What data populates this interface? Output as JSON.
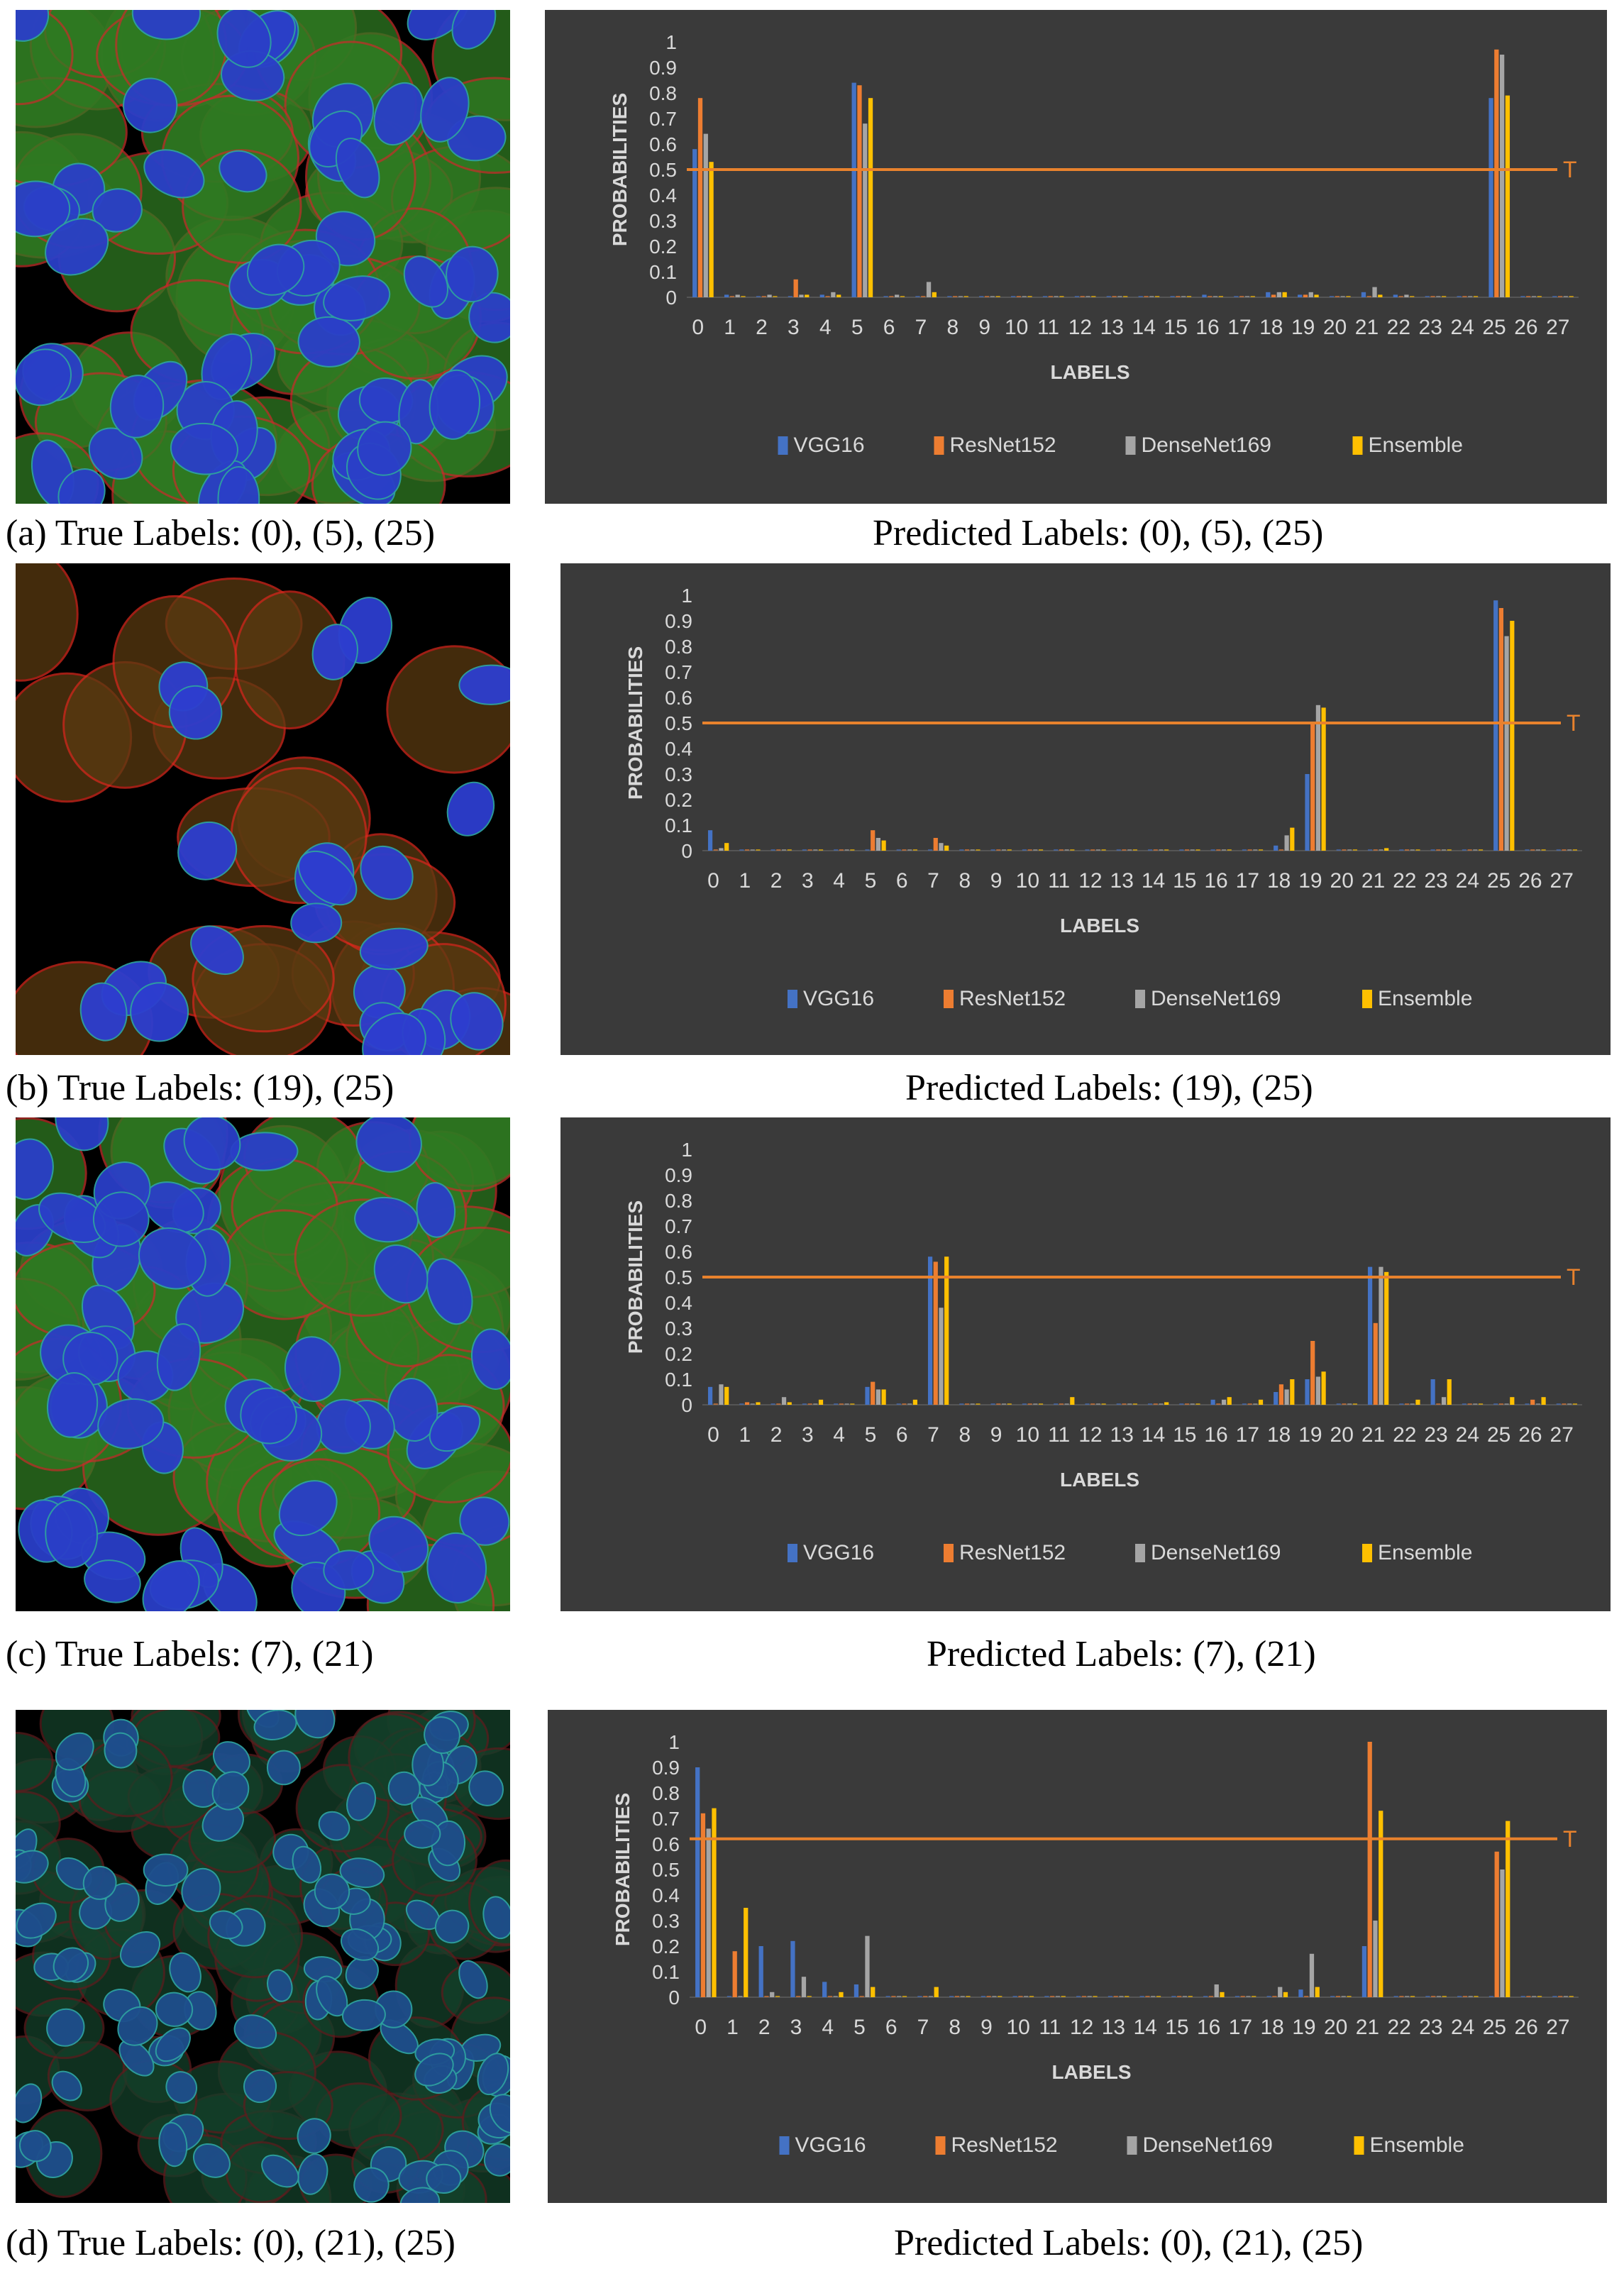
{
  "colors": {
    "vgg16": "#4472c4",
    "resnet152": "#ed7d31",
    "densenet169": "#a5a5a5",
    "ensemble": "#ffc000",
    "threshold": "#e8822d",
    "panel_bg": "#3a3a3a",
    "axis_text": "#d9d9d9",
    "grid": "#555555"
  },
  "figures": [
    {
      "id": "a",
      "image_stain": "green",
      "true_caption": "(a) True Labels: (0), (5), (25)",
      "pred_caption": "Predicted Labels: (0), (5), (25)"
    },
    {
      "id": "b",
      "image_stain": "red",
      "true_caption": "(b) True Labels: (19), (25)",
      "pred_caption": "Predicted Labels: (19), (25)"
    },
    {
      "id": "c",
      "image_stain": "green",
      "true_caption": "(c) True Labels: (7), (21)",
      "pred_caption": "Predicted Labels: (7), (21)"
    },
    {
      "id": "d",
      "image_stain": "dark",
      "true_caption": "(d) True Labels: (0), (21), (25)",
      "pred_caption": "Predicted Labels: (0), (21), (25)"
    }
  ],
  "chart_data": [
    {
      "type": "bar",
      "title": "",
      "xlabel": "LABELS",
      "ylabel": "PROBABILITIES",
      "ylim": [
        0,
        1
      ],
      "yticks": [
        "0",
        "0.1",
        "0.2",
        "0.3",
        "0.4",
        "0.5",
        "0.6",
        "0.7",
        "0.8",
        "0.9",
        "1"
      ],
      "categories": [
        "0",
        "1",
        "2",
        "3",
        "4",
        "5",
        "6",
        "7",
        "8",
        "9",
        "10",
        "11",
        "12",
        "13",
        "14",
        "15",
        "16",
        "17",
        "18",
        "19",
        "20",
        "21",
        "22",
        "23",
        "24",
        "25",
        "26",
        "27"
      ],
      "threshold": {
        "label": "T",
        "value": 0.5
      },
      "legend_position": "bottom",
      "series": [
        {
          "name": "VGG16",
          "values": [
            0.58,
            0.01,
            0.0,
            0.0,
            0.01,
            0.84,
            0.0,
            0.0,
            0.0,
            0.0,
            0.0,
            0.0,
            0.0,
            0.0,
            0.0,
            0.0,
            0.01,
            0.0,
            0.02,
            0.01,
            0.0,
            0.02,
            0.01,
            0.0,
            0.0,
            0.78,
            0.0,
            0.0
          ]
        },
        {
          "name": "ResNet152",
          "values": [
            0.78,
            0.0,
            0.0,
            0.07,
            0.0,
            0.83,
            0.0,
            0.0,
            0.0,
            0.0,
            0.0,
            0.0,
            0.0,
            0.0,
            0.0,
            0.0,
            0.0,
            0.0,
            0.01,
            0.01,
            0.0,
            0.0,
            0.0,
            0.0,
            0.0,
            0.97,
            0.0,
            0.0
          ]
        },
        {
          "name": "DenseNet169",
          "values": [
            0.64,
            0.01,
            0.01,
            0.01,
            0.02,
            0.68,
            0.01,
            0.06,
            0.0,
            0.0,
            0.0,
            0.0,
            0.0,
            0.0,
            0.0,
            0.0,
            0.0,
            0.0,
            0.02,
            0.02,
            0.0,
            0.04,
            0.01,
            0.0,
            0.0,
            0.95,
            0.0,
            0.0
          ]
        },
        {
          "name": "Ensemble",
          "values": [
            0.53,
            0.0,
            0.0,
            0.01,
            0.01,
            0.78,
            0.0,
            0.02,
            0.0,
            0.0,
            0.0,
            0.0,
            0.0,
            0.0,
            0.0,
            0.0,
            0.0,
            0.0,
            0.02,
            0.01,
            0.0,
            0.01,
            0.0,
            0.0,
            0.0,
            0.79,
            0.0,
            0.0
          ]
        }
      ]
    },
    {
      "type": "bar",
      "title": "",
      "xlabel": "LABELS",
      "ylabel": "PROBABILITIES",
      "ylim": [
        0,
        1
      ],
      "yticks": [
        "0",
        "0.1",
        "0.2",
        "0.3",
        "0.4",
        "0.5",
        "0.6",
        "0.7",
        "0.8",
        "0.9",
        "1"
      ],
      "categories": [
        "0",
        "1",
        "2",
        "3",
        "4",
        "5",
        "6",
        "7",
        "8",
        "9",
        "10",
        "11",
        "12",
        "13",
        "14",
        "15",
        "16",
        "17",
        "18",
        "19",
        "20",
        "21",
        "22",
        "23",
        "24",
        "25",
        "26",
        "27"
      ],
      "threshold": {
        "label": "T",
        "value": 0.5
      },
      "legend_position": "bottom",
      "series": [
        {
          "name": "VGG16",
          "values": [
            0.08,
            0.0,
            0.0,
            0.0,
            0.0,
            0.0,
            0.0,
            0.0,
            0.0,
            0.0,
            0.0,
            0.0,
            0.0,
            0.0,
            0.0,
            0.0,
            0.0,
            0.0,
            0.02,
            0.3,
            0.0,
            0.0,
            0.0,
            0.0,
            0.0,
            0.98,
            0.0,
            0.0
          ]
        },
        {
          "name": "ResNet152",
          "values": [
            0.0,
            0.0,
            0.0,
            0.0,
            0.0,
            0.08,
            0.0,
            0.05,
            0.0,
            0.0,
            0.0,
            0.0,
            0.0,
            0.0,
            0.0,
            0.0,
            0.0,
            0.0,
            0.0,
            0.5,
            0.0,
            0.0,
            0.0,
            0.0,
            0.0,
            0.95,
            0.0,
            0.0
          ]
        },
        {
          "name": "DenseNet169",
          "values": [
            0.01,
            0.0,
            0.0,
            0.0,
            0.0,
            0.05,
            0.0,
            0.03,
            0.0,
            0.0,
            0.0,
            0.0,
            0.0,
            0.0,
            0.0,
            0.0,
            0.0,
            0.0,
            0.06,
            0.57,
            0.0,
            0.0,
            0.0,
            0.0,
            0.0,
            0.84,
            0.0,
            0.0
          ]
        },
        {
          "name": "Ensemble",
          "values": [
            0.03,
            0.0,
            0.0,
            0.0,
            0.0,
            0.04,
            0.0,
            0.02,
            0.0,
            0.0,
            0.0,
            0.0,
            0.0,
            0.0,
            0.0,
            0.0,
            0.0,
            0.0,
            0.09,
            0.56,
            0.0,
            0.01,
            0.0,
            0.0,
            0.0,
            0.9,
            0.0,
            0.0
          ]
        }
      ]
    },
    {
      "type": "bar",
      "title": "",
      "xlabel": "LABELS",
      "ylabel": "PROBABILITIES",
      "ylim": [
        0,
        1
      ],
      "yticks": [
        "0",
        "0.1",
        "0.2",
        "0.3",
        "0.4",
        "0.5",
        "0.6",
        "0.7",
        "0.8",
        "0.9",
        "1"
      ],
      "categories": [
        "0",
        "1",
        "2",
        "3",
        "4",
        "5",
        "6",
        "7",
        "8",
        "9",
        "10",
        "11",
        "12",
        "13",
        "14",
        "15",
        "16",
        "17",
        "18",
        "19",
        "20",
        "21",
        "22",
        "23",
        "24",
        "25",
        "26",
        "27"
      ],
      "threshold": {
        "label": "T",
        "value": 0.5
      },
      "legend_position": "bottom",
      "series": [
        {
          "name": "VGG16",
          "values": [
            0.07,
            0.0,
            0.0,
            0.0,
            0.0,
            0.07,
            0.0,
            0.58,
            0.0,
            0.0,
            0.0,
            0.0,
            0.0,
            0.0,
            0.0,
            0.0,
            0.02,
            0.0,
            0.05,
            0.1,
            0.0,
            0.54,
            0.0,
            0.1,
            0.0,
            0.0,
            0.0,
            0.0
          ]
        },
        {
          "name": "ResNet152",
          "values": [
            0.0,
            0.01,
            0.0,
            0.0,
            0.0,
            0.09,
            0.0,
            0.56,
            0.0,
            0.0,
            0.0,
            0.0,
            0.0,
            0.0,
            0.0,
            0.0,
            0.0,
            0.0,
            0.08,
            0.25,
            0.0,
            0.32,
            0.0,
            0.0,
            0.0,
            0.0,
            0.02,
            0.0
          ]
        },
        {
          "name": "DenseNet169",
          "values": [
            0.08,
            0.0,
            0.03,
            0.0,
            0.0,
            0.06,
            0.0,
            0.38,
            0.0,
            0.0,
            0.0,
            0.0,
            0.0,
            0.0,
            0.0,
            0.0,
            0.02,
            0.0,
            0.06,
            0.11,
            0.0,
            0.54,
            0.0,
            0.03,
            0.0,
            0.0,
            0.0,
            0.0
          ]
        },
        {
          "name": "Ensemble",
          "values": [
            0.07,
            0.01,
            0.01,
            0.02,
            0.0,
            0.06,
            0.02,
            0.58,
            0.0,
            0.0,
            0.0,
            0.03,
            0.0,
            0.0,
            0.01,
            0.0,
            0.03,
            0.02,
            0.1,
            0.13,
            0.0,
            0.52,
            0.02,
            0.1,
            0.0,
            0.03,
            0.03,
            0.0
          ]
        }
      ]
    },
    {
      "type": "bar",
      "title": "",
      "xlabel": "LABELS",
      "ylabel": "PROBABILITIES",
      "ylim": [
        0,
        1
      ],
      "yticks": [
        "0",
        "0.1",
        "0.2",
        "0.3",
        "0.4",
        "0.5",
        "0.6",
        "0.7",
        "0.8",
        "0.9",
        "1"
      ],
      "categories": [
        "0",
        "1",
        "2",
        "3",
        "4",
        "5",
        "6",
        "7",
        "8",
        "9",
        "10",
        "11",
        "12",
        "13",
        "14",
        "15",
        "16",
        "17",
        "18",
        "19",
        "20",
        "21",
        "22",
        "23",
        "24",
        "25",
        "26",
        "27"
      ],
      "threshold": {
        "label": "T",
        "value": 0.62
      },
      "legend_position": "bottom",
      "series": [
        {
          "name": "VGG16",
          "values": [
            0.9,
            0.0,
            0.2,
            0.22,
            0.06,
            0.05,
            0.0,
            0.0,
            0.0,
            0.0,
            0.0,
            0.0,
            0.0,
            0.0,
            0.0,
            0.0,
            0.0,
            0.0,
            0.0,
            0.03,
            0.0,
            0.2,
            0.0,
            0.0,
            0.0,
            0.0,
            0.0,
            0.0
          ]
        },
        {
          "name": "ResNet152",
          "values": [
            0.72,
            0.18,
            0.0,
            0.0,
            0.0,
            0.0,
            0.0,
            0.0,
            0.0,
            0.0,
            0.0,
            0.0,
            0.0,
            0.0,
            0.0,
            0.0,
            0.0,
            0.0,
            0.0,
            0.0,
            0.0,
            1.0,
            0.0,
            0.0,
            0.0,
            0.57,
            0.0,
            0.0
          ]
        },
        {
          "name": "DenseNet169",
          "values": [
            0.66,
            0.0,
            0.02,
            0.08,
            0.0,
            0.24,
            0.0,
            0.0,
            0.0,
            0.0,
            0.0,
            0.0,
            0.0,
            0.0,
            0.0,
            0.0,
            0.05,
            0.0,
            0.04,
            0.17,
            0.0,
            0.3,
            0.0,
            0.0,
            0.0,
            0.5,
            0.0,
            0.0
          ]
        },
        {
          "name": "Ensemble",
          "values": [
            0.74,
            0.35,
            0.0,
            0.0,
            0.02,
            0.04,
            0.0,
            0.04,
            0.0,
            0.0,
            0.0,
            0.0,
            0.0,
            0.0,
            0.0,
            0.0,
            0.02,
            0.0,
            0.02,
            0.04,
            0.0,
            0.73,
            0.0,
            0.0,
            0.0,
            0.69,
            0.0,
            0.0
          ]
        }
      ]
    }
  ]
}
